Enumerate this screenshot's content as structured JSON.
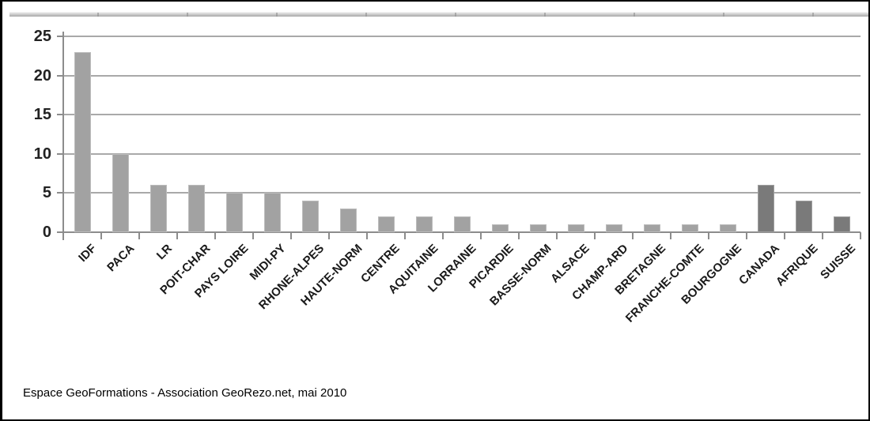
{
  "chart_data": {
    "type": "bar",
    "title": "",
    "xlabel": "",
    "ylabel": "",
    "categories": [
      "IDF",
      "PACA",
      "LR",
      "POIT-CHAR",
      "PAYS LOIRE",
      "MIDI-PY",
      "RHONE-ALPES",
      "HAUTE-NORM",
      "CENTRE",
      "AQUITAINE",
      "LORRAINE",
      "PICARDIE",
      "BASSE-NORM",
      "ALSACE",
      "CHAMP-ARD",
      "BRETAGNE",
      "FRANCHE-COMTE",
      "BOURGOGNE",
      "CANADA",
      "AFRIQUE",
      "SUISSE"
    ],
    "values": [
      23,
      10,
      6,
      6,
      5,
      5,
      4,
      3,
      2,
      2,
      2,
      1,
      1,
      1,
      1,
      1,
      1,
      1,
      6,
      4,
      2
    ],
    "highlighted_categories": [
      "CANADA",
      "AFRIQUE",
      "SUISSE"
    ],
    "ylim": [
      0,
      25
    ],
    "yticks": [
      0,
      5,
      10,
      15,
      20,
      25
    ],
    "grid": true,
    "legend": false,
    "x_label_rotation_deg": -45
  },
  "colors": {
    "bar_default": "#a2a2a2",
    "bar_default_border": "#bcbcbc",
    "bar_highlight": "#7a7a7a",
    "bar_highlight_border": "#a0a0a0",
    "gridline": "#a9a9a9",
    "axis": "#8c8c8c",
    "axis_text": "#222222"
  },
  "footer": {
    "caption": "Espace GeoFormations - Association GeoRezo.net, mai 2010"
  }
}
